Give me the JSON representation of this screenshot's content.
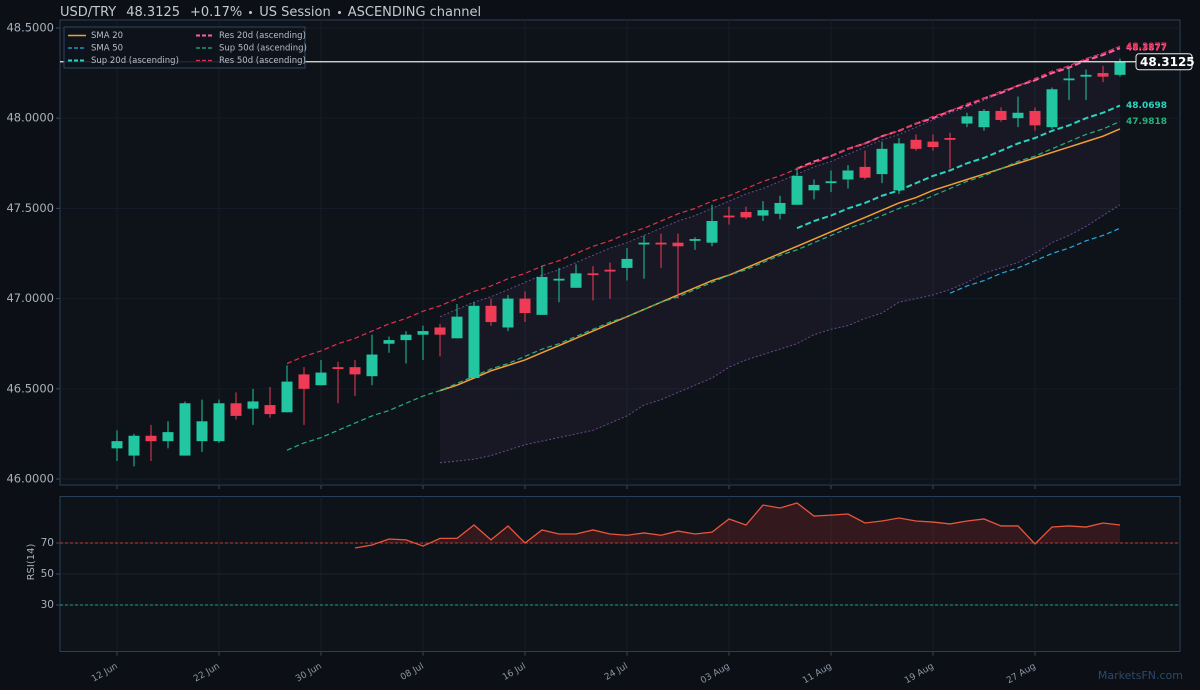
{
  "chart_data": {
    "type": "candlestick",
    "symbol": "USD/TRY",
    "change": "+0.17%",
    "session": "US Session",
    "pattern": "ASCENDING channel",
    "watermark": "MarketsFN.com",
    "categories": [
      "12 Jun",
      null,
      null,
      null,
      null,
      null,
      "22 Jun",
      null,
      null,
      null,
      null,
      null,
      "30 Jun",
      null,
      null,
      null,
      null,
      null,
      "08 Jul",
      null,
      null,
      null,
      null,
      null,
      "16 Jul",
      null,
      null,
      null,
      null,
      null,
      "24 Jul",
      null,
      null,
      null,
      null,
      null,
      "03 Aug",
      null,
      null,
      null,
      null,
      null,
      "11 Aug",
      null,
      null,
      null,
      null,
      null,
      "19 Aug",
      null,
      null,
      null,
      null,
      null,
      "27 Aug",
      null,
      null,
      null,
      null,
      null
    ],
    "ohlc": {
      "open": [
        46.17,
        46.13,
        46.24,
        46.21,
        46.13,
        46.21,
        46.21,
        46.42,
        46.39,
        46.41,
        46.37,
        46.58,
        46.52,
        46.62,
        46.62,
        46.57,
        46.75,
        46.77,
        46.8,
        46.84,
        46.78,
        46.56,
        46.96,
        46.84,
        47.0,
        46.91,
        47.1,
        47.06,
        47.14,
        47.16,
        47.17,
        47.3,
        47.31,
        47.31,
        47.32,
        47.31,
        47.46,
        47.48,
        47.46,
        47.47,
        47.52,
        47.6,
        47.64,
        47.66,
        47.73,
        47.69,
        47.6,
        47.88,
        47.87,
        47.89,
        47.97,
        47.95,
        48.04,
        48.0,
        48.04,
        47.95,
        48.21,
        48.23,
        48.25,
        48.24
      ],
      "high": [
        46.27,
        46.25,
        46.3,
        46.32,
        46.43,
        46.44,
        46.44,
        46.48,
        46.5,
        46.51,
        46.63,
        46.62,
        46.66,
        46.65,
        46.66,
        46.8,
        46.79,
        46.82,
        46.85,
        46.86,
        46.97,
        46.98,
        47.0,
        47.02,
        47.04,
        47.18,
        47.17,
        47.19,
        47.18,
        47.2,
        47.28,
        47.35,
        47.36,
        47.36,
        47.34,
        47.52,
        47.51,
        47.51,
        47.54,
        47.57,
        47.72,
        47.66,
        47.71,
        47.74,
        47.82,
        47.87,
        47.89,
        47.91,
        47.91,
        47.92,
        48.03,
        48.05,
        48.06,
        48.12,
        48.06,
        48.17,
        48.28,
        48.27,
        48.29,
        48.33
      ],
      "low": [
        46.1,
        46.07,
        46.1,
        46.17,
        46.13,
        46.15,
        46.2,
        46.33,
        46.3,
        46.34,
        46.37,
        46.3,
        46.52,
        46.42,
        46.46,
        46.52,
        46.7,
        46.64,
        46.66,
        46.68,
        46.78,
        46.56,
        46.85,
        46.82,
        46.87,
        46.91,
        46.98,
        47.06,
        46.99,
        47.0,
        47.1,
        47.11,
        47.17,
        47.0,
        47.27,
        47.29,
        47.41,
        47.44,
        47.43,
        47.44,
        47.52,
        47.55,
        47.59,
        47.61,
        47.66,
        47.64,
        47.58,
        47.82,
        47.82,
        47.72,
        47.95,
        47.93,
        47.98,
        47.95,
        47.93,
        47.94,
        48.1,
        48.1,
        48.2,
        48.23
      ],
      "close": [
        46.21,
        46.24,
        46.21,
        46.26,
        46.42,
        46.32,
        46.42,
        46.35,
        46.43,
        46.36,
        46.54,
        46.5,
        46.59,
        46.61,
        46.58,
        46.69,
        46.77,
        46.8,
        46.82,
        46.8,
        46.9,
        46.96,
        46.87,
        47.0,
        46.92,
        47.12,
        47.11,
        47.14,
        47.13,
        47.15,
        47.22,
        47.31,
        47.3,
        47.29,
        47.33,
        47.43,
        47.45,
        47.45,
        47.49,
        47.53,
        47.68,
        47.63,
        47.65,
        47.71,
        47.67,
        47.83,
        47.86,
        47.83,
        47.84,
        47.88,
        48.01,
        48.04,
        47.99,
        48.03,
        47.96,
        48.16,
        48.22,
        48.24,
        48.23,
        48.3125
      ]
    },
    "up_color": "#22c7a1",
    "down_color": "#ef3b55",
    "price_line_color": "#e8e8e8",
    "series": [
      {
        "name": "SMA 20",
        "color": "#f0a035",
        "style": "solid",
        "values": [
          null,
          null,
          null,
          null,
          null,
          null,
          null,
          null,
          null,
          null,
          null,
          null,
          null,
          null,
          null,
          null,
          null,
          null,
          null,
          46.49,
          46.52,
          46.56,
          46.6,
          46.63,
          46.66,
          46.7,
          46.74,
          46.78,
          46.82,
          46.86,
          46.9,
          46.94,
          46.98,
          47.02,
          47.06,
          47.1,
          47.13,
          47.17,
          47.21,
          47.25,
          47.29,
          47.33,
          47.37,
          47.41,
          47.45,
          47.49,
          47.53,
          47.56,
          47.6,
          47.63,
          47.66,
          47.69,
          47.72,
          47.75,
          47.78,
          47.81,
          47.84,
          47.87,
          47.9,
          47.94
        ]
      },
      {
        "name": "SMA 50",
        "color": "#2aa6e0",
        "style": "dashed",
        "values": [
          null,
          null,
          null,
          null,
          null,
          null,
          null,
          null,
          null,
          null,
          null,
          null,
          null,
          null,
          null,
          null,
          null,
          null,
          null,
          null,
          null,
          null,
          null,
          null,
          null,
          null,
          null,
          null,
          null,
          null,
          null,
          null,
          null,
          null,
          null,
          null,
          null,
          null,
          null,
          null,
          null,
          null,
          null,
          null,
          null,
          null,
          null,
          null,
          null,
          47.03,
          47.07,
          47.1,
          47.14,
          47.17,
          47.21,
          47.25,
          47.28,
          47.32,
          47.35,
          47.39
        ]
      },
      {
        "name": "Sup 20d (ascending)",
        "color": "#2ad4c0",
        "style": "dashed-bold",
        "label_last": true,
        "values": [
          null,
          null,
          null,
          null,
          null,
          null,
          null,
          null,
          null,
          null,
          null,
          null,
          null,
          null,
          null,
          null,
          null,
          null,
          null,
          null,
          null,
          null,
          null,
          null,
          null,
          null,
          null,
          null,
          null,
          null,
          null,
          null,
          null,
          null,
          null,
          null,
          null,
          null,
          null,
          null,
          47.39,
          47.43,
          47.46,
          47.5,
          47.53,
          47.57,
          47.6,
          47.64,
          47.68,
          47.71,
          47.75,
          47.78,
          47.82,
          47.86,
          47.89,
          47.93,
          47.96,
          48.0,
          48.03,
          48.0698
        ]
      },
      {
        "name": "Res 20d (ascending)",
        "color": "#ff5fa2",
        "style": "dashed-bold",
        "label_last": true,
        "values": [
          null,
          null,
          null,
          null,
          null,
          null,
          null,
          null,
          null,
          null,
          null,
          null,
          null,
          null,
          null,
          null,
          null,
          null,
          null,
          null,
          null,
          null,
          null,
          null,
          null,
          null,
          null,
          null,
          null,
          null,
          null,
          null,
          null,
          null,
          null,
          null,
          null,
          null,
          null,
          null,
          47.72,
          47.76,
          47.79,
          47.83,
          47.86,
          47.9,
          47.93,
          47.97,
          48.0,
          48.04,
          48.07,
          48.11,
          48.14,
          48.18,
          48.21,
          48.25,
          48.28,
          48.32,
          48.35,
          48.3877
        ]
      },
      {
        "name": "Sup 50d (ascending)",
        "color": "#25b07a",
        "style": "dashed",
        "label_last": true,
        "values": [
          null,
          null,
          null,
          null,
          null,
          null,
          null,
          null,
          null,
          null,
          46.16,
          46.2,
          46.23,
          46.27,
          46.31,
          46.35,
          46.38,
          46.42,
          46.46,
          46.49,
          46.53,
          46.57,
          46.61,
          46.64,
          46.68,
          46.72,
          46.75,
          46.79,
          46.83,
          46.87,
          46.9,
          46.94,
          46.98,
          47.01,
          47.05,
          47.09,
          47.13,
          47.16,
          47.2,
          47.24,
          47.27,
          47.31,
          47.35,
          47.39,
          47.42,
          47.46,
          47.5,
          47.53,
          47.57,
          47.61,
          47.65,
          47.68,
          47.72,
          47.76,
          47.79,
          47.83,
          47.87,
          47.91,
          47.94,
          47.9818
        ]
      },
      {
        "name": "Res 50d (ascending)",
        "color": "#e0304f",
        "style": "dashed",
        "label_last": true,
        "values": [
          null,
          null,
          null,
          null,
          null,
          null,
          null,
          null,
          null,
          null,
          46.64,
          46.68,
          46.71,
          46.75,
          46.78,
          46.82,
          46.86,
          46.89,
          46.93,
          46.96,
          47.0,
          47.04,
          47.07,
          47.11,
          47.14,
          47.18,
          47.21,
          47.25,
          47.29,
          47.32,
          47.36,
          47.39,
          47.43,
          47.47,
          47.5,
          47.54,
          47.57,
          47.61,
          47.65,
          47.68,
          47.72,
          47.75,
          47.79,
          47.83,
          47.86,
          47.9,
          47.93,
          47.97,
          48.01,
          48.04,
          48.08,
          48.11,
          48.15,
          48.18,
          48.22,
          48.26,
          48.29,
          48.33,
          48.36,
          48.3977
        ]
      }
    ],
    "envelope": {
      "color": "#6a4a8c",
      "upper": [
        null,
        null,
        null,
        null,
        null,
        null,
        null,
        null,
        null,
        null,
        null,
        null,
        null,
        null,
        null,
        null,
        null,
        null,
        null,
        46.9,
        46.94,
        46.98,
        47.01,
        47.05,
        47.09,
        47.13,
        47.16,
        47.2,
        47.24,
        47.28,
        47.31,
        47.35,
        47.39,
        47.43,
        47.46,
        47.5,
        47.54,
        47.58,
        47.61,
        47.65,
        47.69,
        47.73,
        47.76,
        47.8,
        47.84,
        47.88,
        47.91,
        47.95,
        47.99,
        48.03,
        48.06,
        48.1,
        48.14,
        48.18,
        48.21,
        48.25,
        48.29,
        48.33,
        48.36,
        48.4
      ],
      "lower": [
        null,
        null,
        null,
        null,
        null,
        null,
        null,
        null,
        null,
        null,
        null,
        null,
        null,
        null,
        null,
        null,
        null,
        null,
        null,
        46.09,
        46.1,
        46.11,
        46.13,
        46.16,
        46.19,
        46.21,
        46.23,
        46.25,
        46.27,
        46.31,
        46.35,
        46.41,
        46.44,
        46.48,
        46.52,
        46.56,
        46.62,
        46.66,
        46.69,
        46.72,
        46.75,
        46.8,
        46.83,
        46.85,
        46.89,
        46.92,
        46.98,
        47.0,
        47.02,
        47.05,
        47.09,
        47.14,
        47.17,
        47.2,
        47.25,
        47.31,
        47.35,
        47.4,
        47.46,
        47.52
      ]
    },
    "ylim": [
      45.967,
      48.544
    ],
    "yticks": [
      {
        "value": 46,
        "label": "46.0000"
      },
      {
        "value": 46.5,
        "label": "46.5000"
      },
      {
        "value": 47,
        "label": "47.0000"
      },
      {
        "value": 47.5,
        "label": "47.5000"
      },
      {
        "value": 48,
        "label": "48.0000"
      },
      {
        "value": 48.5,
        "label": "48.5000"
      }
    ],
    "grid": true,
    "legend": "upper left",
    "rsi": {
      "ylabel": "RSI(14)",
      "color": "#e8553a",
      "ylim": [
        0,
        100
      ],
      "yticks": [
        30,
        50,
        70
      ],
      "ref_lines": [
        {
          "value": 70,
          "color": "#c23a2e"
        },
        {
          "value": 30,
          "color": "#1f9e89"
        }
      ],
      "values": [
        null,
        null,
        null,
        null,
        null,
        null,
        null,
        null,
        null,
        null,
        null,
        null,
        null,
        null,
        66.8,
        68.7,
        72.6,
        72.0,
        68.0,
        73.0,
        73.0,
        81.6,
        72.0,
        81.0,
        70.0,
        78.4,
        75.8,
        75.8,
        78.4,
        75.8,
        75.0,
        76.5,
        75.0,
        77.7,
        75.8,
        77.0,
        85.5,
        81.6,
        94.5,
        92.6,
        95.8,
        87.4,
        88.0,
        88.7,
        82.9,
        84.2,
        86.1,
        84.2,
        83.5,
        82.3,
        84.2,
        85.5,
        81.0,
        81.0,
        69.4,
        80.3,
        81.0,
        80.3,
        82.9,
        81.6
      ]
    }
  }
}
